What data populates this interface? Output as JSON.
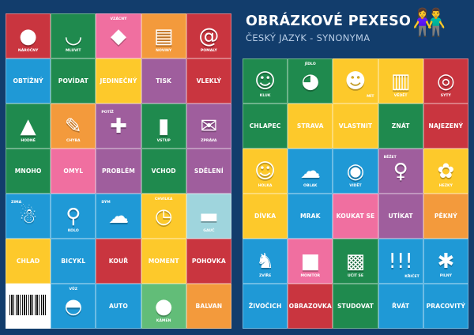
{
  "header": {
    "title": "OBRÁZKOVÉ PEXESO",
    "subtitle": "ČESKÝ JAZYK - SYNONYMA",
    "illustration": "children-holding-sign"
  },
  "colors": {
    "background": "#123d6c",
    "red": "#c9353f",
    "green": "#1f8a4e",
    "pink": "#f06fa0",
    "orange": "#f39a3c",
    "blue": "#1f99d6",
    "yellow": "#fdc92b",
    "purple": "#9f5e9d",
    "lightblue": "#9fd5dd",
    "lightgreen": "#62bd78",
    "white": "#ffffff"
  },
  "left_cards": [
    {
      "type": "pic",
      "label": "NÁROČNÝ",
      "color": "red",
      "icon": "boulder-pusher-icon",
      "glyph": "●",
      "pos": "bottom"
    },
    {
      "type": "pic",
      "label": "MLUVIT",
      "color": "green",
      "icon": "mouth-icon",
      "glyph": "◡",
      "pos": "bottom"
    },
    {
      "type": "pic",
      "label": "VZÁCNÝ",
      "color": "pink",
      "icon": "diamond-icon",
      "glyph": "◆",
      "pos": "top"
    },
    {
      "type": "pic",
      "label": "NOVINY",
      "color": "orange",
      "icon": "newspaper-icon",
      "glyph": "▤",
      "pos": "bottom"
    },
    {
      "type": "pic",
      "label": "POMALÝ",
      "color": "red",
      "icon": "snail-icon",
      "glyph": "@",
      "pos": "bottom"
    },
    {
      "type": "word",
      "label": "OBTÍŽNÝ",
      "color": "blue"
    },
    {
      "type": "word",
      "label": "POVÍDAT",
      "color": "green"
    },
    {
      "type": "word",
      "label": "JEDINEČNÝ",
      "color": "yellow"
    },
    {
      "type": "word",
      "label": "TISK",
      "color": "purple"
    },
    {
      "type": "word",
      "label": "VLEKLÝ",
      "color": "red"
    },
    {
      "type": "pic",
      "label": "HODNÉ",
      "color": "green",
      "icon": "cake-icon",
      "glyph": "▲",
      "pos": "bottom"
    },
    {
      "type": "pic",
      "label": "CHYBA",
      "color": "orange",
      "icon": "paper-note-icon",
      "glyph": "✎",
      "pos": "bottom"
    },
    {
      "type": "pic",
      "label": "POTÍŽ",
      "color": "purple",
      "icon": "puzzle-icon",
      "glyph": "✚",
      "pos": "topleft"
    },
    {
      "type": "pic",
      "label": "VSTUP",
      "color": "green",
      "icon": "door-icon",
      "glyph": "▮",
      "pos": "bottom"
    },
    {
      "type": "pic",
      "label": "ZPRÁVA",
      "color": "purple",
      "icon": "envelope-icon",
      "glyph": "✉",
      "pos": "bottom"
    },
    {
      "type": "word",
      "label": "MNOHO",
      "color": "green"
    },
    {
      "type": "word",
      "label": "OMYL",
      "color": "pink"
    },
    {
      "type": "word",
      "label": "PROBLÉM",
      "color": "purple"
    },
    {
      "type": "word",
      "label": "VCHOD",
      "color": "green"
    },
    {
      "type": "word",
      "label": "SDĚLENÍ",
      "color": "purple"
    },
    {
      "type": "pic",
      "label": "ZIMA",
      "color": "blue",
      "icon": "snowman-icon",
      "glyph": "☃",
      "pos": "topleft"
    },
    {
      "type": "pic",
      "label": "KOLO",
      "color": "blue",
      "icon": "bicycle-icon",
      "glyph": "⚲",
      "pos": "bottom"
    },
    {
      "type": "pic",
      "label": "DÝM",
      "color": "blue",
      "icon": "smoke-icon",
      "glyph": "☁",
      "pos": "topleft"
    },
    {
      "type": "pic",
      "label": "CHVILKA",
      "color": "yellow",
      "icon": "stopwatch-icon",
      "glyph": "◷",
      "pos": "top"
    },
    {
      "type": "pic",
      "label": "GAUČ",
      "color": "lightblue",
      "icon": "sofa-icon",
      "glyph": "▬",
      "pos": "bottom"
    },
    {
      "type": "word",
      "label": "CHLAD",
      "color": "yellow"
    },
    {
      "type": "word",
      "label": "BICYKL",
      "color": "blue"
    },
    {
      "type": "word",
      "label": "KOUŘ",
      "color": "red"
    },
    {
      "type": "word",
      "label": "MOMENT",
      "color": "yellow"
    },
    {
      "type": "word",
      "label": "POHOVKA",
      "color": "red"
    },
    {
      "type": "barcode",
      "color": "white",
      "icon": "barcode-icon"
    },
    {
      "type": "pic",
      "label": "VŮZ",
      "color": "blue",
      "icon": "car-icon",
      "glyph": "◓",
      "pos": "top"
    },
    {
      "type": "word",
      "label": "AUTO",
      "color": "blue"
    },
    {
      "type": "pic",
      "label": "KÁMEN",
      "color": "lightgreen",
      "icon": "stone-icon",
      "glyph": "●",
      "pos": "bottom"
    },
    {
      "type": "word",
      "label": "BALVAN",
      "color": "orange"
    }
  ],
  "right_cards": [
    {
      "type": "pic",
      "label": "KLUK",
      "color": "green",
      "icon": "boy-icon",
      "glyph": "☺",
      "pos": "bottom"
    },
    {
      "type": "pic",
      "label": "JÍDLO",
      "color": "green",
      "icon": "food-icon",
      "glyph": "◕",
      "pos": "top"
    },
    {
      "type": "pic",
      "label": "MÍT",
      "color": "yellow",
      "icon": "baby-icon",
      "glyph": "☻",
      "pos": "right"
    },
    {
      "type": "pic",
      "label": "VĚDĚT",
      "color": "yellow",
      "icon": "books-icon",
      "glyph": "▥",
      "pos": "bottom"
    },
    {
      "type": "pic",
      "label": "SYTÝ",
      "color": "red",
      "icon": "plate-icon",
      "glyph": "◎",
      "pos": "bottom"
    },
    {
      "type": "word",
      "label": "CHLAPEC",
      "color": "green"
    },
    {
      "type": "word",
      "label": "STRAVA",
      "color": "yellow"
    },
    {
      "type": "word",
      "label": "VLASTNIT",
      "color": "yellow"
    },
    {
      "type": "word",
      "label": "ZNÁT",
      "color": "green"
    },
    {
      "type": "word",
      "label": "NAJEZENÝ",
      "color": "red"
    },
    {
      "type": "pic",
      "label": "HOLKA",
      "color": "yellow",
      "icon": "girl-icon",
      "glyph": "☺",
      "pos": "bottom"
    },
    {
      "type": "pic",
      "label": "OBLAK",
      "color": "blue",
      "icon": "cloud-icon",
      "glyph": "☁",
      "pos": "bottom"
    },
    {
      "type": "pic",
      "label": "VIDĚT",
      "color": "blue",
      "icon": "eye-icon",
      "glyph": "◉",
      "pos": "bottom"
    },
    {
      "type": "pic",
      "label": "BĚŽET",
      "color": "purple",
      "icon": "runner-icon",
      "glyph": "♀",
      "pos": "topleft"
    },
    {
      "type": "pic",
      "label": "HEZKÝ",
      "color": "yellow",
      "icon": "rose-icon",
      "glyph": "✿",
      "pos": "bottom"
    },
    {
      "type": "word",
      "label": "DÍVKA",
      "color": "yellow"
    },
    {
      "type": "word",
      "label": "MRAK",
      "color": "blue"
    },
    {
      "type": "word",
      "label": "KOUKAT SE",
      "color": "pink"
    },
    {
      "type": "word",
      "label": "UTÍKAT",
      "color": "purple"
    },
    {
      "type": "word",
      "label": "PĚKNÝ",
      "color": "orange"
    },
    {
      "type": "pic",
      "label": "ZVÍŘE",
      "color": "blue",
      "icon": "cat-icon",
      "glyph": "♞",
      "pos": "bottom"
    },
    {
      "type": "pic",
      "label": "MONITOR",
      "color": "pink",
      "icon": "monitor-icon",
      "glyph": "■",
      "pos": "bottom"
    },
    {
      "type": "pic",
      "label": "UČIT SE",
      "color": "green",
      "icon": "chalkboard-icon",
      "glyph": "▩",
      "pos": "bottom"
    },
    {
      "type": "pic",
      "label": "KŘIČET",
      "color": "blue",
      "icon": "speech-bubble-icon",
      "glyph": "!!!",
      "pos": "right"
    },
    {
      "type": "pic",
      "label": "PILNÝ",
      "color": "blue",
      "icon": "ant-icon",
      "glyph": "✱",
      "pos": "bottom"
    },
    {
      "type": "word",
      "label": "ŽIVOČICH",
      "color": "blue"
    },
    {
      "type": "word",
      "label": "OBRAZOVKA",
      "color": "red"
    },
    {
      "type": "word",
      "label": "STUDOVAT",
      "color": "green"
    },
    {
      "type": "word",
      "label": "ŘVÁT",
      "color": "blue"
    },
    {
      "type": "word",
      "label": "PRACOVITÝ",
      "color": "blue"
    }
  ]
}
